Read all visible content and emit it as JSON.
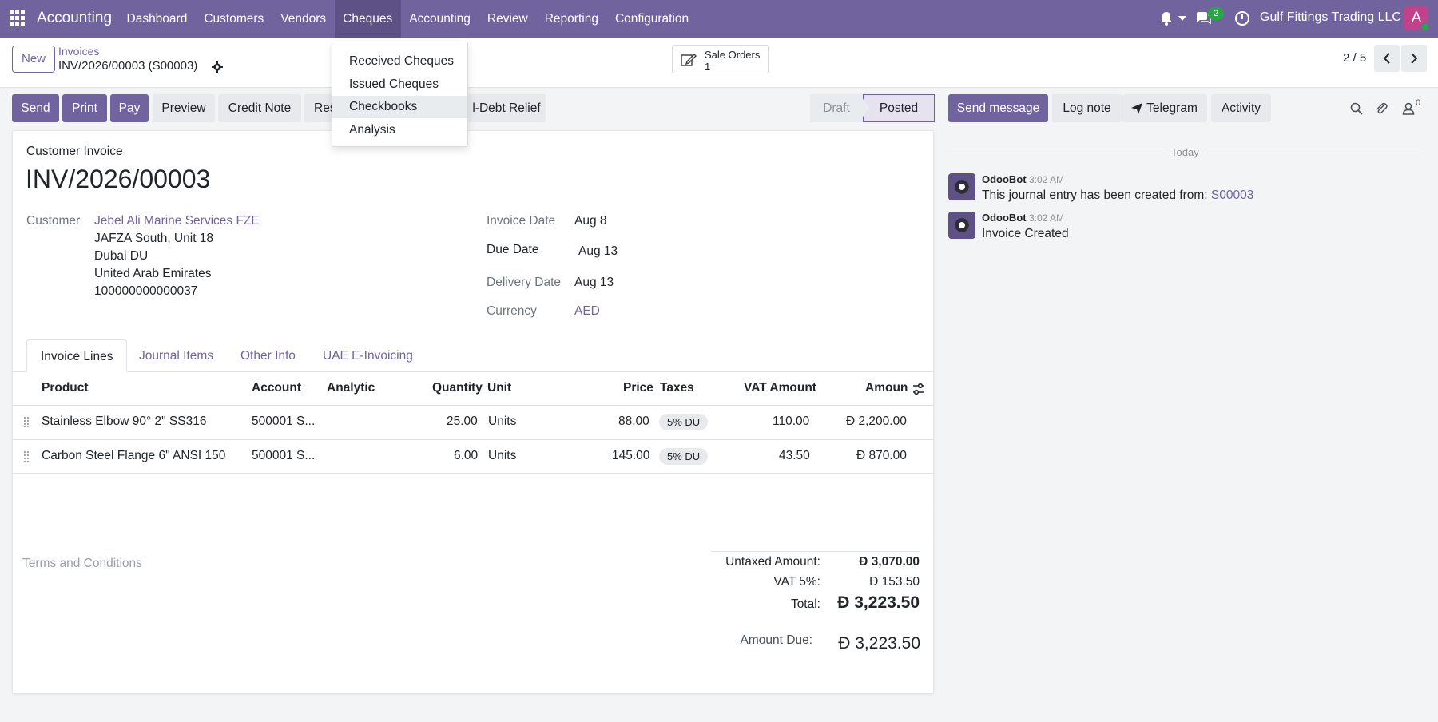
{
  "navbar": {
    "app_name": "Accounting",
    "menu": [
      "Dashboard",
      "Customers",
      "Vendors",
      "Cheques",
      "Accounting",
      "Review",
      "Reporting",
      "Configuration"
    ],
    "chat_count": "2",
    "company": "Gulf Fittings Trading LLC",
    "avatar_letter": "A"
  },
  "cheques_menu": [
    "Received Cheques",
    "Issued Cheques",
    "Checkbooks",
    "Analysis"
  ],
  "control": {
    "new_label": "New",
    "breadcrumb": "Invoices",
    "record": "INV/2026/00003 (S00003)",
    "smart_button": {
      "label": "Sale Orders",
      "value": "1"
    },
    "pager": "2 / 5"
  },
  "actions": {
    "send": "Send",
    "print": "Print",
    "pay": "Pay",
    "preview": "Preview",
    "credit_note": "Credit Note",
    "reset": "Res",
    "bad_debt": "l-Debt Relief"
  },
  "status": {
    "draft": "Draft",
    "posted": "Posted"
  },
  "chatter": {
    "send_message": "Send message",
    "log_note": "Log note",
    "telegram": "Telegram",
    "activity": "Activity",
    "followers": "0",
    "today": "Today",
    "messages": [
      {
        "author": "OdooBot",
        "time": "3:02 AM",
        "text": "This journal entry has been created from: ",
        "link": "S00003"
      },
      {
        "author": "OdooBot",
        "time": "3:02 AM",
        "text": "Invoice Created",
        "link": ""
      }
    ]
  },
  "invoice": {
    "type": "Customer Invoice",
    "number": "INV/2026/00003",
    "customer_label": "Customer",
    "customer_name": "Jebel Ali Marine Services FZE",
    "address": [
      "JAFZA South, Unit 18",
      "Dubai DU",
      "United Arab Emirates",
      "100000000000037"
    ],
    "invoice_date_label": "Invoice Date",
    "invoice_date": "Aug 8",
    "due_date_label": "Due Date",
    "due_date": "Aug 13",
    "delivery_date_label": "Delivery Date",
    "delivery_date": "Aug 13",
    "currency_label": "Currency",
    "currency": "AED"
  },
  "tabs": [
    "Invoice Lines",
    "Journal Items",
    "Other Info",
    "UAE E-Invoicing"
  ],
  "table": {
    "headers": {
      "product": "Product",
      "account": "Account",
      "analytic": "Analytic",
      "quantity": "Quantity",
      "unit": "Unit",
      "price": "Price",
      "taxes": "Taxes",
      "vat": "VAT Amount",
      "amount": "Amount"
    },
    "rows": [
      {
        "product": "Stainless Elbow 90° 2\" SS316",
        "account": "500001 S...",
        "quantity": "25.00",
        "unit": "Units",
        "price": "88.00",
        "tax": "5% DU",
        "vat": "110.00",
        "amount": "Đ 2,200.00"
      },
      {
        "product": "Carbon Steel Flange 6\" ANSI 150",
        "account": "500001 S...",
        "quantity": "6.00",
        "unit": "Units",
        "price": "145.00",
        "tax": "5% DU",
        "vat": "43.50",
        "amount": "Đ 870.00"
      }
    ]
  },
  "terms_placeholder": "Terms and Conditions",
  "totals": {
    "untaxed_label": "Untaxed Amount:",
    "untaxed": "Đ 3,070.00",
    "vat_label": "VAT 5%:",
    "vat": "Đ 153.50",
    "total_label": "Total:",
    "total": "Đ 3,223.50",
    "due_label": "Amount Due:",
    "due": "Đ 3,223.50"
  }
}
